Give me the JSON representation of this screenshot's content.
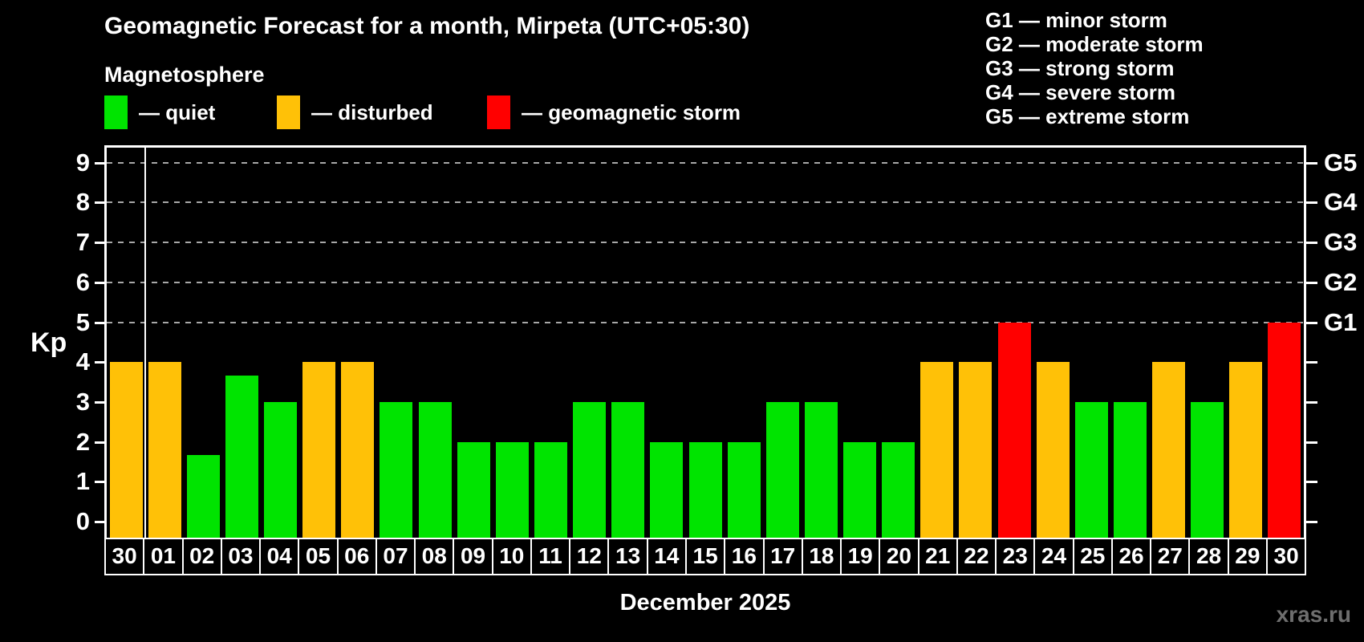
{
  "chart_data": {
    "type": "bar",
    "title": "Geomagnetic Forecast for a month, Mirpeta (UTC+05:30)",
    "subtitle": "Magnetosphere",
    "xlabel": "December 2025",
    "ylabel": "Kp",
    "ylim": [
      0,
      9
    ],
    "grid": "dashed horizontal lines at Kp 5-9 only",
    "legend_position": "top",
    "yticks": [
      0,
      1,
      2,
      3,
      4,
      5,
      6,
      7,
      8,
      9
    ],
    "gridlines": [
      5,
      6,
      7,
      8,
      9
    ],
    "right_axis_labels": {
      "5": "G1",
      "6": "G2",
      "7": "G3",
      "8": "G4",
      "9": "G5"
    },
    "categories": [
      "30",
      "01",
      "02",
      "03",
      "04",
      "05",
      "06",
      "07",
      "08",
      "09",
      "10",
      "11",
      "12",
      "13",
      "14",
      "15",
      "16",
      "17",
      "18",
      "19",
      "20",
      "21",
      "22",
      "23",
      "24",
      "25",
      "26",
      "27",
      "28",
      "29",
      "30"
    ],
    "values": [
      4,
      4,
      1.67,
      3.67,
      3,
      4,
      4,
      3,
      3,
      2,
      2,
      2,
      3,
      3,
      2,
      2,
      2,
      3,
      3,
      2,
      2,
      4,
      4,
      5,
      4,
      3,
      3,
      4,
      3,
      4,
      5
    ],
    "statuses": [
      "disturbed",
      "disturbed",
      "quiet",
      "quiet",
      "quiet",
      "disturbed",
      "disturbed",
      "quiet",
      "quiet",
      "quiet",
      "quiet",
      "quiet",
      "quiet",
      "quiet",
      "quiet",
      "quiet",
      "quiet",
      "quiet",
      "quiet",
      "quiet",
      "quiet",
      "disturbed",
      "disturbed",
      "storm",
      "disturbed",
      "quiet",
      "quiet",
      "disturbed",
      "quiet",
      "disturbed",
      "storm"
    ],
    "month_boundary_after_index": 0,
    "colors": {
      "quiet": "#00E400",
      "disturbed": "#FFC107",
      "storm": "#FF0000"
    }
  },
  "legend": {
    "items": [
      {
        "label": "— quiet",
        "color_key": "quiet"
      },
      {
        "label": "— disturbed",
        "color_key": "disturbed"
      },
      {
        "label": "— geomagnetic storm",
        "color_key": "storm"
      }
    ]
  },
  "g_scale": {
    "lines": [
      "G1 — minor storm",
      "G2 — moderate storm",
      "G3 — strong storm",
      "G4 — severe storm",
      "G5 — extreme storm"
    ]
  },
  "watermark": "xras.ru"
}
